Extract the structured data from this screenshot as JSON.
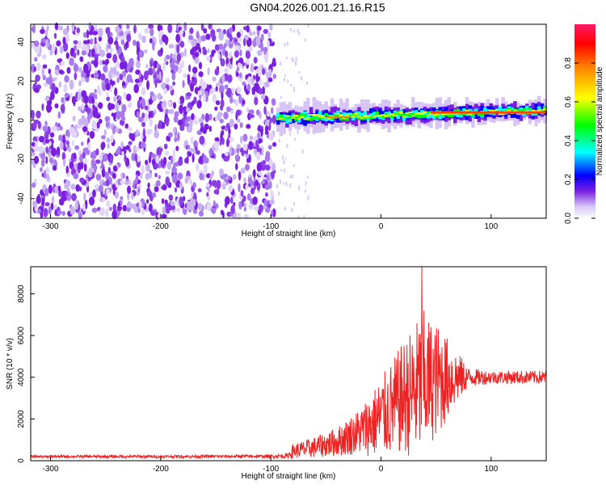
{
  "title": "GN04.2026.001.21.16.R15",
  "chart_data": [
    {
      "type": "heatmap",
      "name": "spectrogram",
      "xlabel": "Height of straight line (km)",
      "ylabel": "Frequency (Hz)",
      "xlim": [
        -318,
        150
      ],
      "ylim": [
        -50,
        49
      ],
      "x_ticks": [
        -300,
        -200,
        -100,
        0,
        100
      ],
      "y_ticks": [
        -40,
        -20,
        0,
        20,
        40
      ],
      "noise_region_x": [
        -318,
        -95
      ],
      "signal_band": {
        "x_start": -95,
        "x_end": 150,
        "frequency_start_hz": 1,
        "frequency_end_hz": 5
      },
      "colorbar": {
        "label": "Normalized spectral amplitude",
        "range": [
          0,
          1
        ],
        "ticks": [
          0.0,
          0.2,
          0.4,
          0.6,
          0.8
        ],
        "tick_labels": [
          "0.0",
          "0.2",
          "0.4",
          "0.6",
          "0.8"
        ],
        "colors": [
          "#ffffff",
          "#c9b3f2",
          "#7a1fe0",
          "#0000ff",
          "#00ffff",
          "#00ff00",
          "#ffff00",
          "#ff8000",
          "#ff0000",
          "#ff1a66"
        ]
      }
    },
    {
      "type": "line",
      "name": "snr",
      "xlabel": "Height of straight line (km)",
      "ylabel": "SNR (10 * v/v)",
      "xlim": [
        -318,
        150
      ],
      "ylim": [
        0,
        9300
      ],
      "x_ticks": [
        -300,
        -200,
        -100,
        0,
        100
      ],
      "y_ticks": [
        0,
        2000,
        4000,
        6000,
        8000
      ],
      "color": "#ee2222",
      "envelope": {
        "x": [
          -318,
          -200,
          -100,
          -85,
          -80,
          -60,
          -40,
          -20,
          -10,
          0,
          10,
          20,
          30,
          38,
          45,
          55,
          60,
          70,
          80,
          100,
          150
        ],
        "baseline": [
          200,
          200,
          210,
          230,
          450,
          650,
          900,
          1400,
          1700,
          2100,
          2500,
          3000,
          3300,
          3700,
          3800,
          3900,
          3950,
          4000,
          4000,
          4000,
          4000
        ],
        "amplitude": [
          60,
          70,
          80,
          120,
          350,
          500,
          700,
          1100,
          1500,
          1900,
          2300,
          2700,
          3200,
          3600,
          3000,
          2500,
          2000,
          1200,
          450,
          320,
          320
        ]
      },
      "peak": {
        "x": 37,
        "y": 9300
      }
    }
  ]
}
